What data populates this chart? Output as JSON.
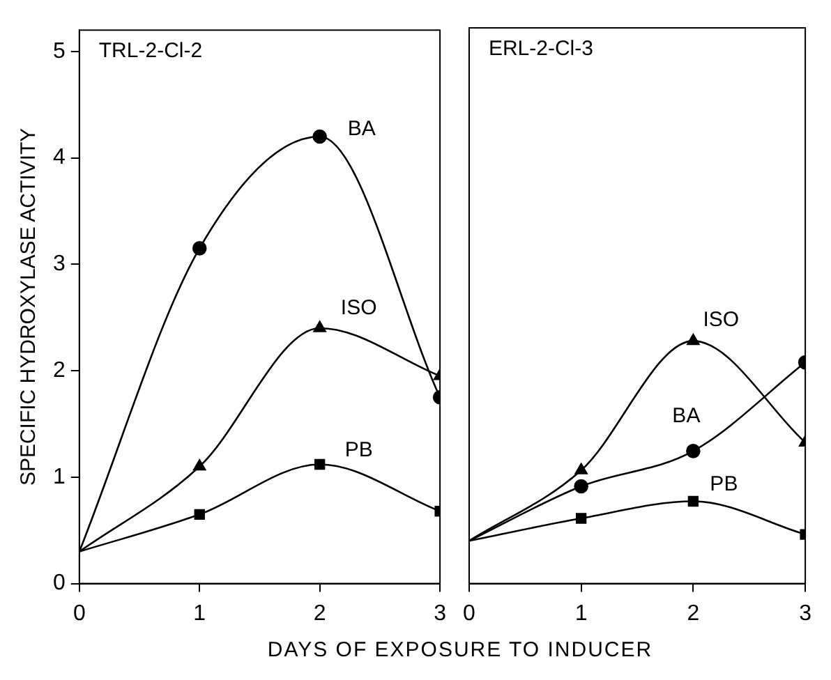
{
  "chart_data": [
    {
      "type": "line",
      "title": "TRL-2-Cl-2",
      "xlabel": "DAYS OF EXPOSURE TO INDUCER",
      "ylabel": "SPECIFIC HYDROXYLASE ACTIVITY",
      "x": [
        0,
        1,
        2,
        3
      ],
      "xlim": [
        0,
        3
      ],
      "xticks": [
        0,
        1,
        2,
        3
      ],
      "ylim": [
        0,
        5.2
      ],
      "yticks": [
        0,
        1,
        2,
        3,
        4,
        5
      ],
      "grid": false,
      "legend": false,
      "series": [
        {
          "name": "BA",
          "color": "#000000",
          "marker": "circle",
          "values": [
            0.3,
            3.15,
            4.2,
            1.75
          ]
        },
        {
          "name": "ISO",
          "color": "#000000",
          "marker": "triangle",
          "values": [
            0.3,
            1.1,
            2.4,
            1.95
          ]
        },
        {
          "name": "PB",
          "color": "#000000",
          "marker": "square",
          "values": [
            0.3,
            0.65,
            1.12,
            0.68
          ]
        }
      ]
    },
    {
      "type": "line",
      "title": "ERL-2-Cl-3",
      "x": [
        0,
        1,
        2,
        3
      ],
      "xlim": [
        0,
        3
      ],
      "xticks": [
        0,
        1,
        2,
        3
      ],
      "ylim": [
        0,
        5.2
      ],
      "tick_labels": "x",
      "grid": false,
      "legend": false,
      "series": [
        {
          "name": "ISO",
          "color": "#000000",
          "marker": "triangle",
          "values": [
            0.4,
            1.06,
            2.27,
            1.32
          ]
        },
        {
          "name": "BA",
          "color": "#000000",
          "marker": "circle",
          "values": [
            0.4,
            0.91,
            1.24,
            2.07
          ]
        },
        {
          "name": "PB",
          "color": "#000000",
          "marker": "square",
          "values": [
            0.4,
            0.61,
            0.77,
            0.46
          ]
        }
      ]
    }
  ]
}
